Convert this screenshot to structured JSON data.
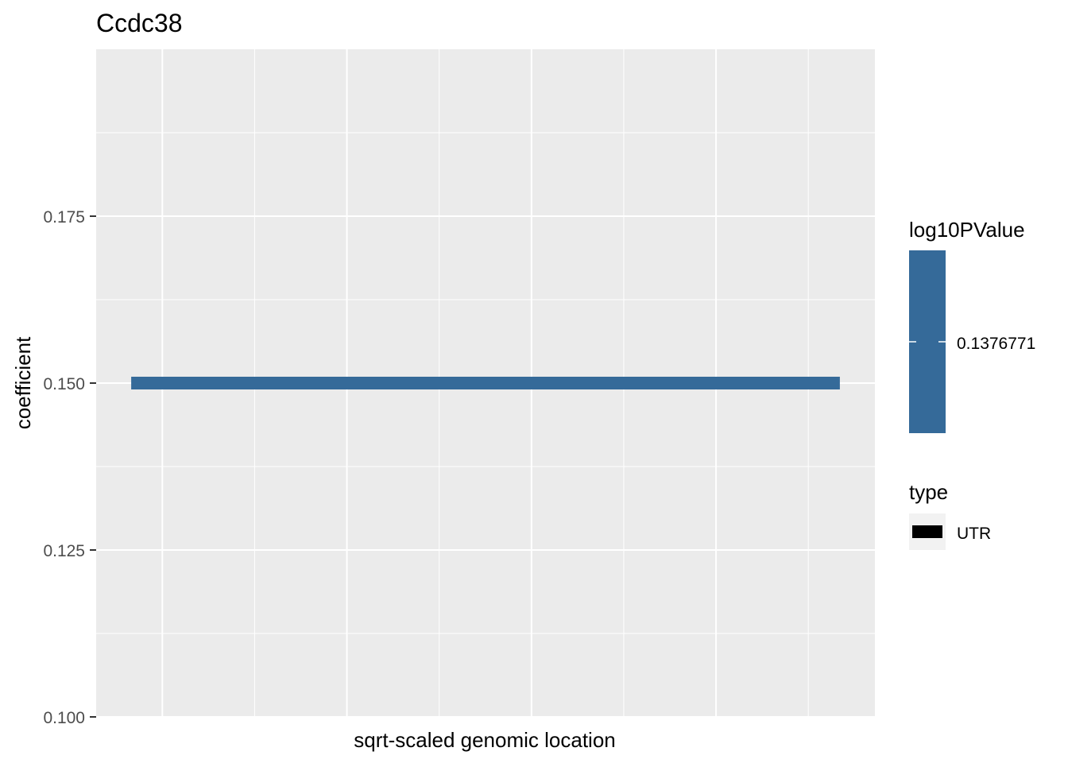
{
  "chart_data": {
    "type": "line",
    "title": "Ccdc38",
    "xlabel": "sqrt-scaled genomic location",
    "ylabel": "coefficient",
    "ylim": [
      0.1,
      0.2
    ],
    "yticks": [
      0.1,
      0.125,
      0.15,
      0.175
    ],
    "ytick_labels": [
      "0.100",
      "0.125",
      "0.150",
      "0.175"
    ],
    "xlim": [
      0,
      1
    ],
    "grid": true,
    "series": [
      {
        "name": "UTR",
        "type": "UTR",
        "log10PValue": 0.1376771,
        "color": "#356a99",
        "x": [
          0.045,
          0.955
        ],
        "y": [
          0.15,
          0.15
        ]
      }
    ],
    "legend": {
      "position": "right",
      "color_title": "log10PValue",
      "color_value": "0.1376771",
      "color_fill": "#356a99",
      "type_title": "type",
      "type_items": [
        "UTR"
      ]
    }
  },
  "colors": {
    "panel_bg": "#ebebeb",
    "grid": "#ffffff",
    "segment": "#356a99"
  }
}
